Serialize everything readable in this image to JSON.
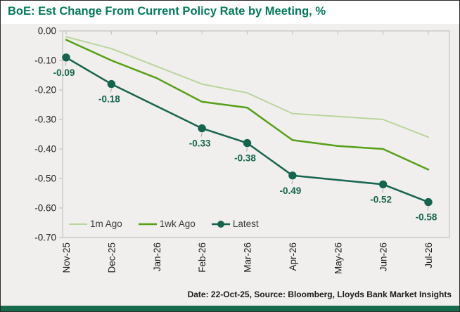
{
  "title": "BoE: Est Change From Current Policy Rate by Meeting, %",
  "footer": "Date: 22-Oct-25,  Source: Bloomberg, Lloyds Bank Market Insights",
  "colors": {
    "title_green": "#047a5b",
    "bottom_bar_green": "#156b4c",
    "plot_background": "#f0efed",
    "axis_line": "#c8c6c3",
    "axis_text": "#1f1f1f",
    "series_1m_ago": "#b9d69b",
    "series_1wk_ago": "#55a015",
    "series_latest": "#15654e"
  },
  "chart_data": {
    "type": "line",
    "title": "BoE: Est Change From Current Policy Rate by Meeting, %",
    "categories": [
      "Nov-25",
      "Dec-25",
      "Jan-26",
      "Feb-26",
      "Mar-26",
      "Apr-26",
      "May-26",
      "Jun-26",
      "Jul-26"
    ],
    "series": [
      {
        "name": "1m Ago",
        "color": "#b9d69b",
        "stroke_width": 2,
        "marker": false,
        "labels": false,
        "values": [
          -0.02,
          -0.06,
          -0.12,
          -0.18,
          -0.21,
          -0.28,
          -0.29,
          -0.3,
          -0.36
        ]
      },
      {
        "name": "1wk Ago",
        "color": "#55a015",
        "stroke_width": 2.5,
        "marker": false,
        "labels": false,
        "values": [
          -0.03,
          -0.1,
          -0.16,
          -0.24,
          -0.26,
          -0.37,
          -0.39,
          -0.4,
          -0.47
        ]
      },
      {
        "name": "Latest",
        "color": "#15654e",
        "stroke_width": 2.5,
        "marker": true,
        "labels": true,
        "values": [
          -0.09,
          -0.18,
          null,
          -0.33,
          -0.38,
          -0.49,
          null,
          -0.52,
          -0.58
        ]
      }
    ],
    "ylim": [
      -0.7,
      0.0
    ],
    "ytick_labels": [
      "0.00",
      "-0.10",
      "-0.20",
      "-0.30",
      "-0.40",
      "-0.50",
      "-0.60",
      "-0.70"
    ],
    "xlabel": "",
    "ylabel": "",
    "grid": false,
    "legend_position": "inside-bottom-left",
    "data_label_values": [
      "-0.09",
      "-0.18",
      "-0.33",
      "-0.38",
      "-0.49",
      "-0.52",
      "-0.58"
    ]
  }
}
